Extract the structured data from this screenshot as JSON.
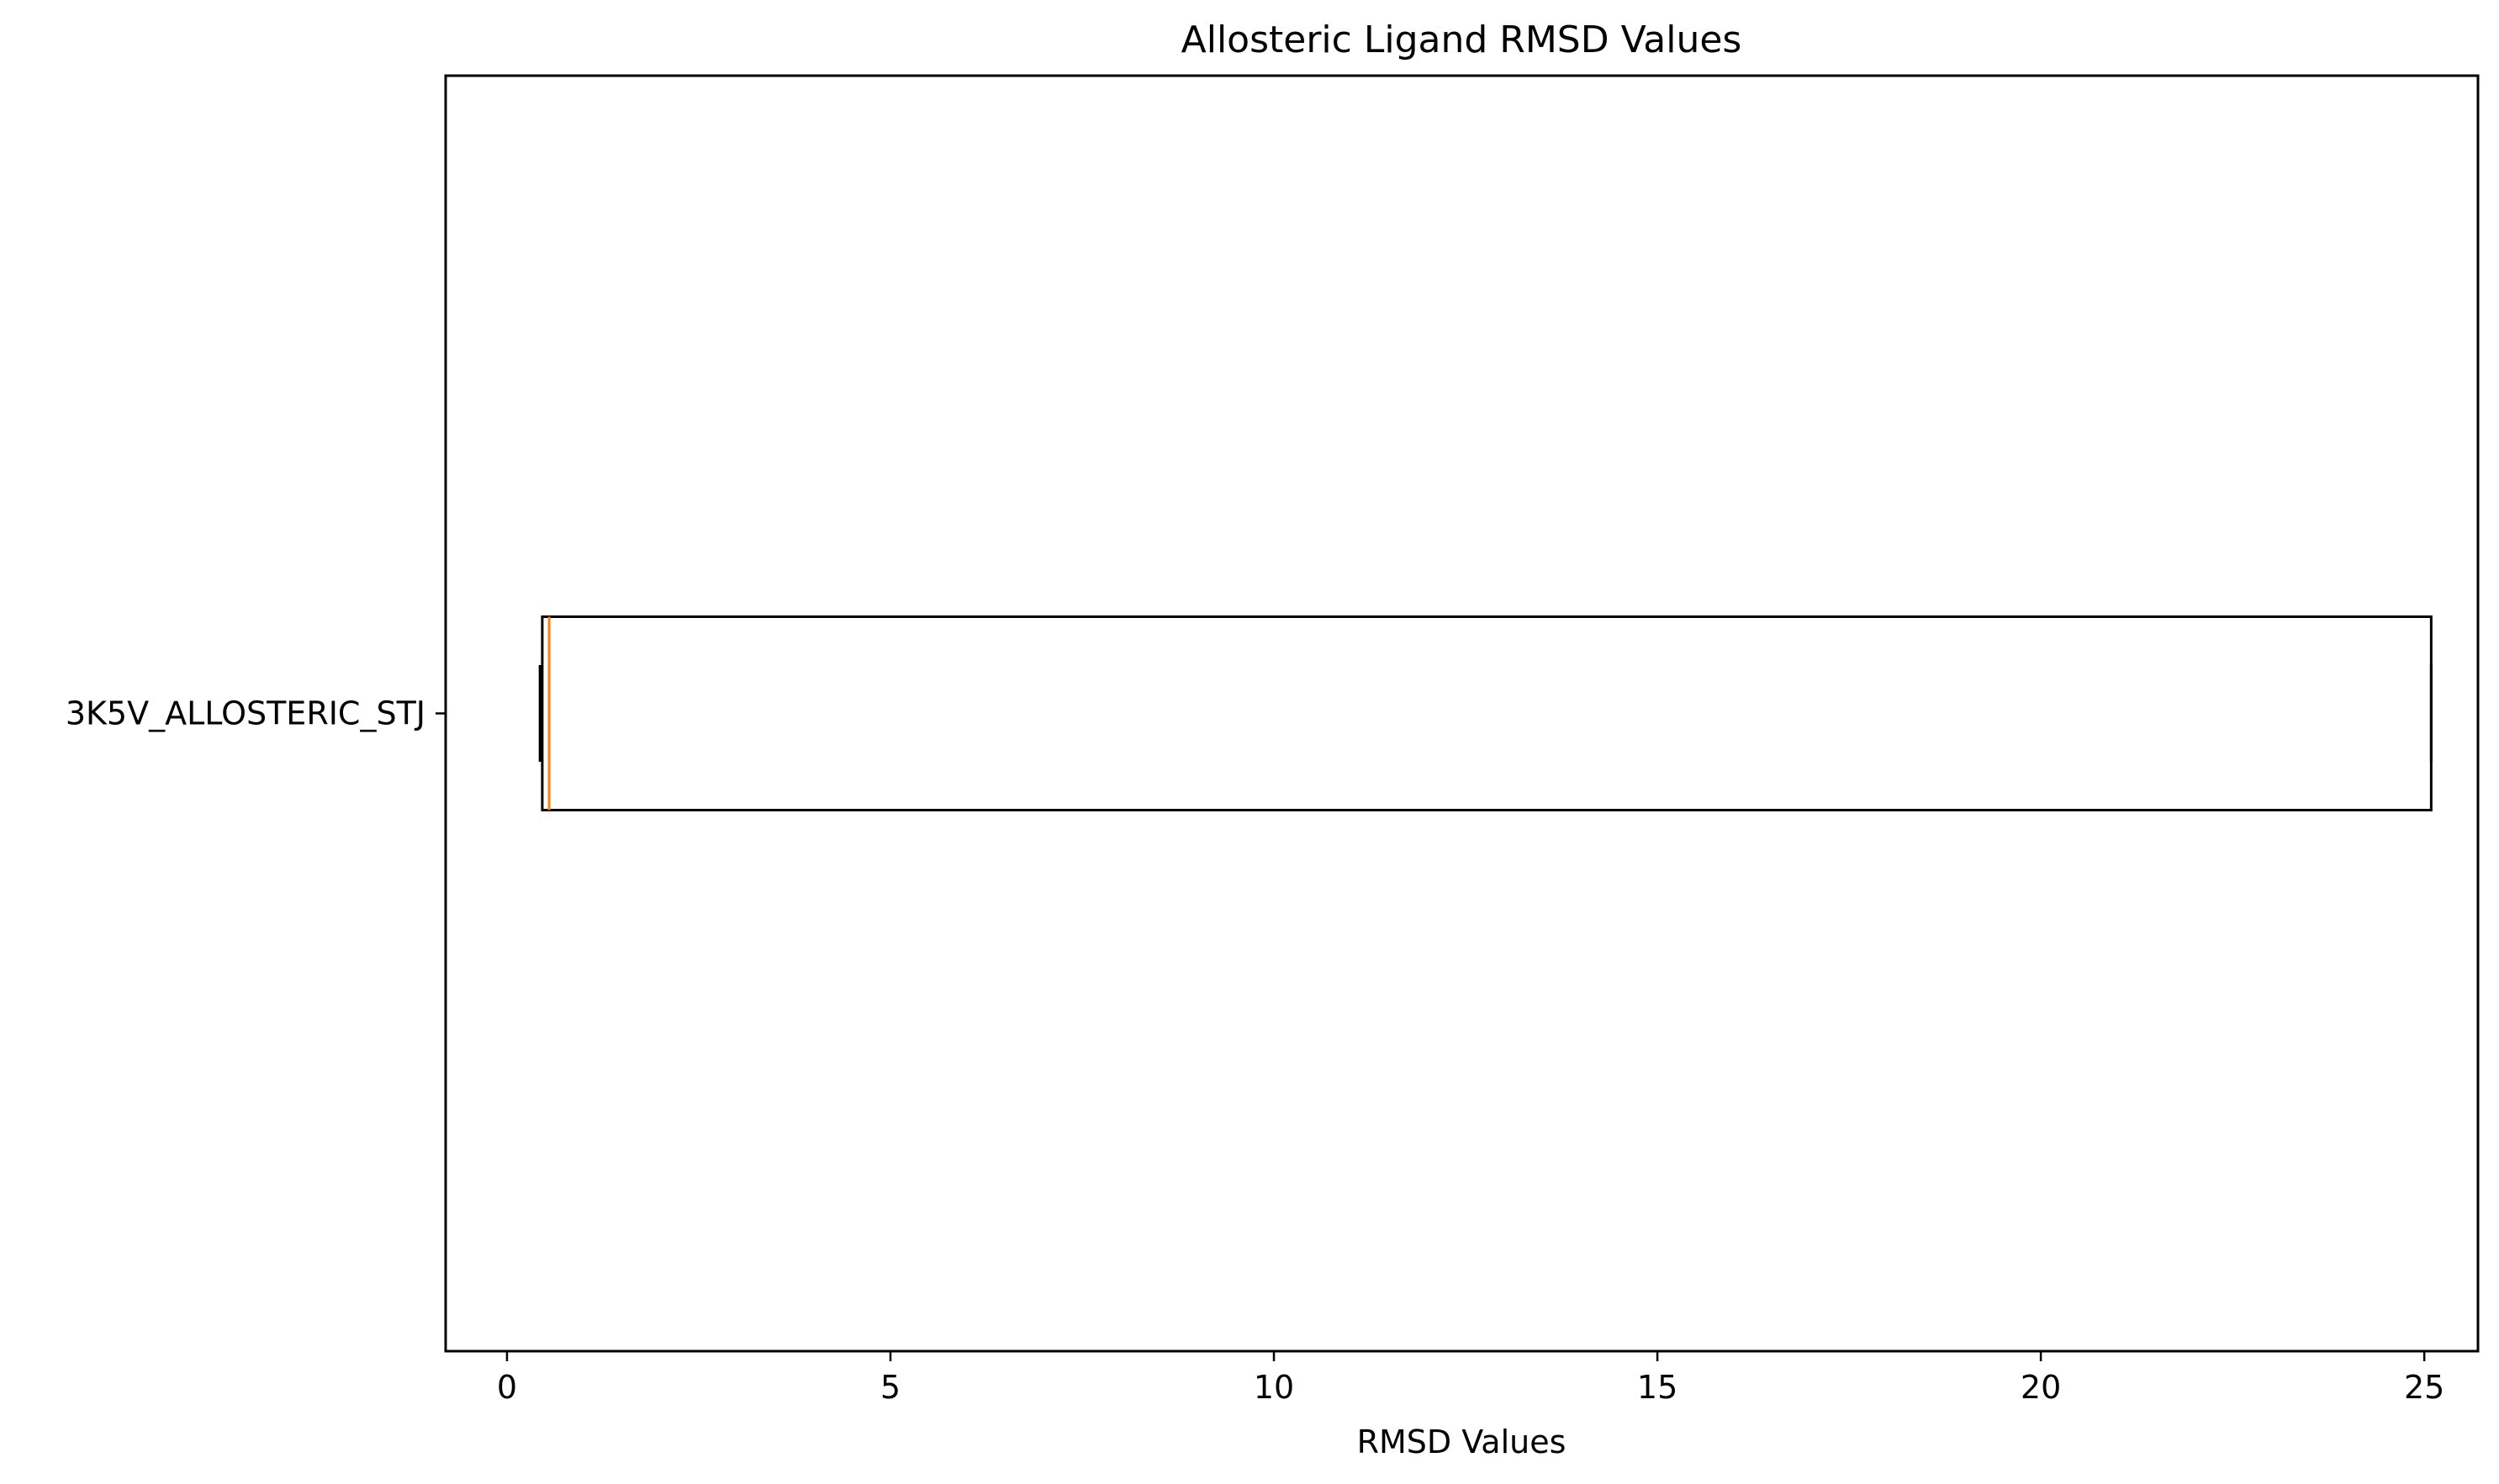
{
  "chart_data": {
    "type": "boxplot",
    "orientation": "horizontal",
    "title": "Allosteric Ligand RMSD Values",
    "xlabel": "RMSD Values",
    "ylabel": "",
    "xlim": [
      -0.8,
      25.7
    ],
    "xticks": [
      0,
      5,
      10,
      15,
      20,
      25
    ],
    "categories": [
      "3K5V_ALLOSTERIC_STJ"
    ],
    "boxes": [
      {
        "label": "3K5V_ALLOSTERIC_STJ",
        "whisker_low": 0.43,
        "q1": 0.46,
        "median": 0.55,
        "q3": 25.09,
        "whisker_high": 25.09
      }
    ],
    "grid": false,
    "colors": {
      "box": "#000000",
      "median": "#ff7f0e"
    }
  }
}
